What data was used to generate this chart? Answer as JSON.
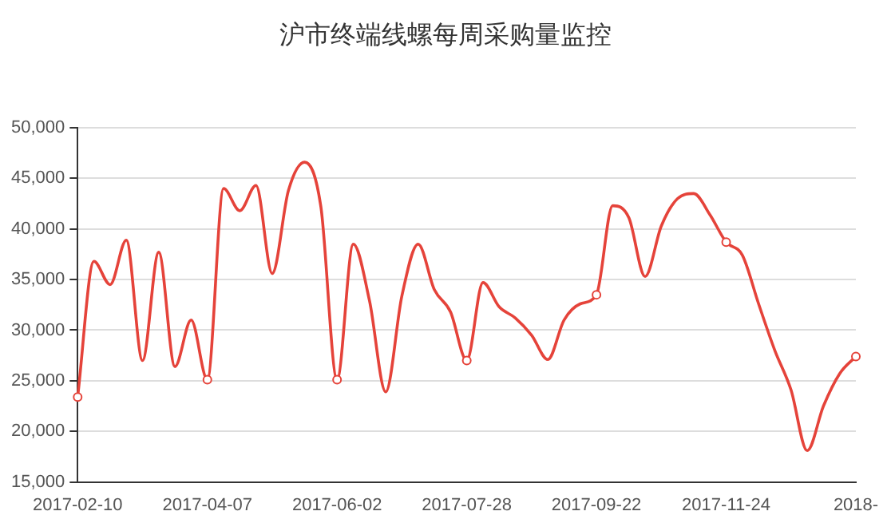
{
  "chart_data": {
    "type": "line",
    "title": "沪市终端线螺每周采购量监控",
    "categories": [
      "2017-02-10",
      null,
      null,
      null,
      null,
      null,
      null,
      null,
      "2017-04-07",
      null,
      null,
      null,
      null,
      null,
      null,
      null,
      "2017-06-02",
      null,
      null,
      null,
      null,
      null,
      null,
      null,
      "2017-07-28",
      null,
      null,
      null,
      null,
      null,
      null,
      null,
      "2017-09-22",
      null,
      null,
      null,
      null,
      null,
      null,
      null,
      "2017-11-24",
      null,
      null,
      null,
      null,
      null,
      null,
      null,
      "2018-"
    ],
    "series": [
      {
        "color": "#e5433a",
        "values": [
          23400,
          36800,
          34500,
          38900,
          27000,
          37700,
          26400,
          31000,
          25100,
          44000,
          41800,
          44300,
          35600,
          43800,
          46600,
          42200,
          25100,
          38500,
          32900,
          23900,
          33400,
          38500,
          34000,
          31800,
          27000,
          34700,
          32300,
          31200,
          29500,
          27100,
          31000,
          32600,
          33500,
          42300,
          41100,
          35300,
          40300,
          43000,
          43500,
          41400,
          38700,
          37400,
          32600,
          28000,
          24100,
          18100,
          22500,
          25700,
          27400
        ]
      }
    ],
    "ylim": [
      15000,
      50000
    ],
    "yticks": [
      {
        "value": 15000,
        "label": "15,000"
      },
      {
        "value": 20000,
        "label": "20,000"
      },
      {
        "value": 25000,
        "label": "25,000"
      },
      {
        "value": 30000,
        "label": "30,000"
      },
      {
        "value": 35000,
        "label": "35,000"
      },
      {
        "value": 40000,
        "label": "40,000"
      },
      {
        "value": 45000,
        "label": "45,000"
      },
      {
        "value": 50000,
        "label": "50,000"
      }
    ],
    "grid": "y",
    "legend": false,
    "line_style": "solid"
  }
}
